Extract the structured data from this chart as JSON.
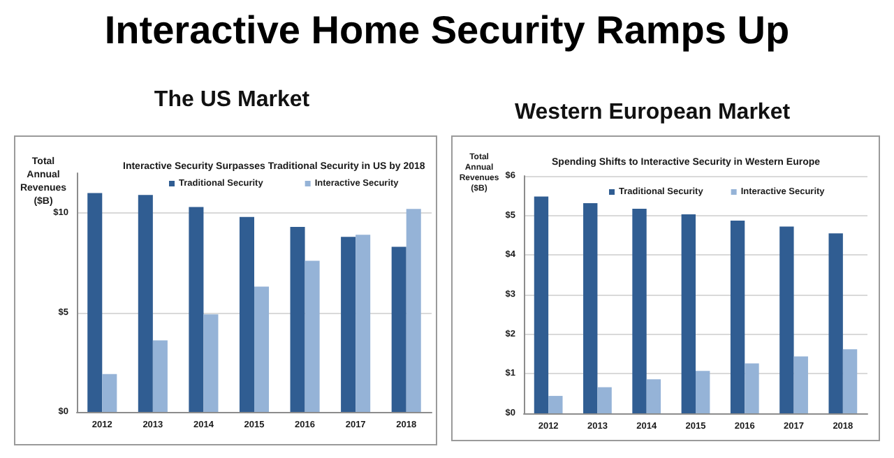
{
  "chart_data": [
    {
      "type": "other",
      "title": "Interactive Home Security Ramps Up"
    },
    {
      "type": "bar",
      "title": "The US Market",
      "subtitle": "Interactive Security Surpasses Traditional Security in US by 2018",
      "ylabel": "Total Annual Revenues ($B)",
      "categories": [
        "2012",
        "2013",
        "2014",
        "2015",
        "2016",
        "2017",
        "2018"
      ],
      "series": [
        {
          "name": "Traditional Security",
          "color": "#305d92",
          "values": [
            11.0,
            10.9,
            10.3,
            9.8,
            9.3,
            8.8,
            8.3
          ]
        },
        {
          "name": "Interactive Security",
          "color": "#95b3d7",
          "values": [
            1.9,
            3.6,
            4.9,
            6.3,
            7.6,
            8.9,
            10.2
          ]
        }
      ],
      "ylim": [
        0,
        12
      ],
      "yticks": [
        {
          "value": 0,
          "label": "$0"
        },
        {
          "value": 5,
          "label": "$5"
        },
        {
          "value": 10,
          "label": "$10"
        }
      ],
      "grid": "y",
      "legend": "top"
    },
    {
      "type": "bar",
      "title": "Western European Market",
      "subtitle": "Spending Shifts to Interactive Security in Western Europe",
      "ylabel": "Total Annual Revenues ($B)",
      "categories": [
        "2012",
        "2013",
        "2014",
        "2015",
        "2016",
        "2017",
        "2018"
      ],
      "series": [
        {
          "name": "Traditional Security",
          "color": "#305d92",
          "values": [
            5.48,
            5.31,
            5.17,
            5.03,
            4.87,
            4.72,
            4.55
          ]
        },
        {
          "name": "Interactive Security",
          "color": "#95b3d7",
          "values": [
            0.44,
            0.66,
            0.86,
            1.07,
            1.26,
            1.44,
            1.62
          ]
        }
      ],
      "ylim": [
        0,
        6
      ],
      "yticks": [
        {
          "value": 0,
          "label": "$0"
        },
        {
          "value": 1,
          "label": "$1"
        },
        {
          "value": 2,
          "label": "$2"
        },
        {
          "value": 3,
          "label": "$3"
        },
        {
          "value": 4,
          "label": "$4"
        },
        {
          "value": 5,
          "label": "$5"
        },
        {
          "value": 6,
          "label": "$6"
        }
      ],
      "grid": "y",
      "legend": "top"
    }
  ]
}
